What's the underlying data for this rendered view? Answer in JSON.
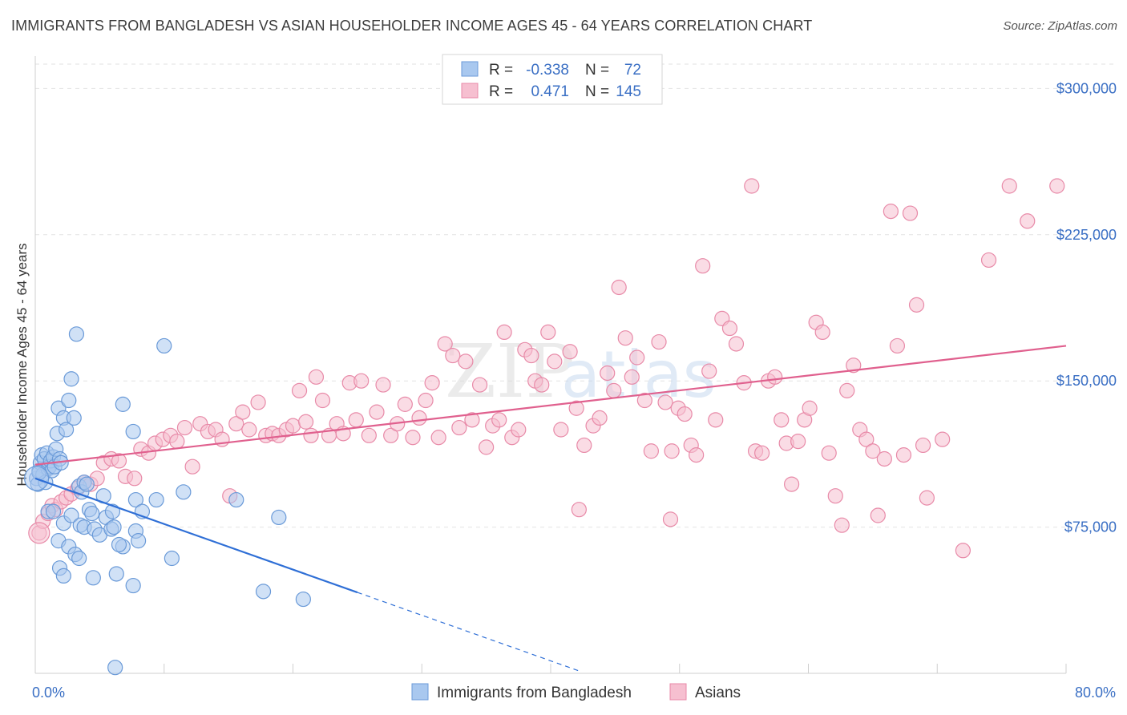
{
  "header": {
    "title": "IMMIGRANTS FROM BANGLADESH VS ASIAN HOUSEHOLDER INCOME AGES 45 - 64 YEARS CORRELATION CHART",
    "source": "Source: ZipAtlas.com"
  },
  "colors": {
    "blue_fill": "#a9c8ef",
    "blue_stroke": "#6a9ad8",
    "blue_line": "#2f6fd6",
    "pink_fill": "#f6bfd0",
    "pink_stroke": "#e88aa8",
    "pink_line": "#e0608e",
    "label_blue": "#3a6fc4",
    "grid": "#e2e2e2"
  },
  "stats_box": {
    "rows": [
      {
        "r_label": "R =",
        "r_value": "-0.338",
        "n_label": "N =",
        "n_value": "72",
        "series": "blue"
      },
      {
        "r_label": "R =",
        "r_value": "0.471",
        "n_label": "N =",
        "n_value": "145",
        "series": "pink"
      }
    ]
  },
  "watermark": {
    "zip": "ZIP",
    "atlas": "atlas"
  },
  "chart_data": {
    "type": "scatter",
    "title": "IMMIGRANTS FROM BANGLADESH VS ASIAN HOUSEHOLDER INCOME AGES 45 - 64 YEARS CORRELATION CHART",
    "ylabel": "Householder Income Ages 45 - 64 years",
    "xlim": [
      0,
      80
    ],
    "ylim": [
      0,
      312500
    ],
    "x_tick_labels": {
      "left": "0.0%",
      "right": "80.0%"
    },
    "y_ticks": [
      75000,
      150000,
      225000,
      300000
    ],
    "y_tick_labels": [
      "$75,000",
      "$150,000",
      "$225,000",
      "$300,000"
    ],
    "grid": true,
    "legend_position": "bottom",
    "series": [
      {
        "name": "Immigrants from Bangladesh",
        "color": "blue",
        "r": -0.338,
        "n": 72,
        "trend": {
          "x0": 0,
          "y0": 100000,
          "x1": 25,
          "y1": 41500,
          "dashed_to_x": 42.3
        },
        "points": [
          [
            0.1,
            100000
          ],
          [
            0.2,
            97000
          ],
          [
            0.3,
            104000
          ],
          [
            0.4,
            108000
          ],
          [
            0.5,
            112000
          ],
          [
            0.6,
            102000
          ],
          [
            0.7,
            110000
          ],
          [
            0.8,
            98000
          ],
          [
            0.9,
            113000
          ],
          [
            1.0,
            105000
          ],
          [
            1.1,
            106000
          ],
          [
            1.2,
            109000
          ],
          [
            1.3,
            104000
          ],
          [
            1.4,
            111000
          ],
          [
            1.5,
            106000
          ],
          [
            1.6,
            115000
          ],
          [
            1.7,
            123000
          ],
          [
            1.8,
            136000
          ],
          [
            1.9,
            110000
          ],
          [
            2.0,
            108000
          ],
          [
            2.2,
            131000
          ],
          [
            2.4,
            125000
          ],
          [
            2.6,
            140000
          ],
          [
            2.8,
            151000
          ],
          [
            3.0,
            131000
          ],
          [
            3.2,
            174000
          ],
          [
            3.4,
            96000
          ],
          [
            3.6,
            93000
          ],
          [
            3.8,
            98000
          ],
          [
            4.0,
            97000
          ],
          [
            4.2,
            84000
          ],
          [
            1.0,
            83000
          ],
          [
            1.4,
            83000
          ],
          [
            2.2,
            77000
          ],
          [
            2.8,
            81000
          ],
          [
            3.5,
            76000
          ],
          [
            3.8,
            75000
          ],
          [
            4.4,
            82000
          ],
          [
            4.6,
            74000
          ],
          [
            5.0,
            71000
          ],
          [
            5.5,
            80000
          ],
          [
            5.9,
            74000
          ],
          [
            6.1,
            75000
          ],
          [
            1.8,
            68000
          ],
          [
            2.6,
            65000
          ],
          [
            3.1,
            61000
          ],
          [
            3.4,
            59000
          ],
          [
            1.9,
            54000
          ],
          [
            2.2,
            50000
          ],
          [
            4.5,
            49000
          ],
          [
            6.3,
            51000
          ],
          [
            7.6,
            45000
          ],
          [
            5.3,
            91000
          ],
          [
            6.0,
            83000
          ],
          [
            7.8,
            89000
          ],
          [
            8.3,
            83000
          ],
          [
            9.4,
            89000
          ],
          [
            11.5,
            93000
          ],
          [
            15.6,
            89000
          ],
          [
            18.9,
            80000
          ],
          [
            17.7,
            42000
          ],
          [
            20.8,
            38000
          ],
          [
            7.6,
            124000
          ],
          [
            6.8,
            138000
          ],
          [
            10.0,
            168000
          ],
          [
            7.8,
            73000
          ],
          [
            8.0,
            68000
          ],
          [
            6.8,
            65000
          ],
          [
            6.5,
            66000
          ],
          [
            10.6,
            59000
          ],
          [
            6.2,
            3000
          ],
          [
            0.3,
            103000
          ]
        ]
      },
      {
        "name": "Asians",
        "color": "pink",
        "r": 0.471,
        "n": 145,
        "trend": {
          "x0": 0,
          "y0": 107000,
          "x1": 80,
          "y1": 168000
        },
        "points": [
          [
            0.3,
            72000
          ],
          [
            0.6,
            78000
          ],
          [
            1.0,
            82000
          ],
          [
            1.3,
            86000
          ],
          [
            1.6,
            84000
          ],
          [
            2.0,
            88000
          ],
          [
            2.4,
            90000
          ],
          [
            2.8,
            92000
          ],
          [
            3.3,
            95000
          ],
          [
            3.8,
            98000
          ],
          [
            4.3,
            97000
          ],
          [
            4.8,
            100000
          ],
          [
            5.3,
            108000
          ],
          [
            5.9,
            110000
          ],
          [
            6.5,
            109000
          ],
          [
            7.0,
            101000
          ],
          [
            7.7,
            100000
          ],
          [
            8.2,
            115000
          ],
          [
            8.8,
            113000
          ],
          [
            9.3,
            118000
          ],
          [
            9.9,
            120000
          ],
          [
            10.5,
            122000
          ],
          [
            11.0,
            119000
          ],
          [
            11.6,
            126000
          ],
          [
            12.2,
            106000
          ],
          [
            12.8,
            128000
          ],
          [
            13.4,
            124000
          ],
          [
            14.0,
            125000
          ],
          [
            14.5,
            120000
          ],
          [
            15.1,
            91000
          ],
          [
            15.6,
            128000
          ],
          [
            16.1,
            134000
          ],
          [
            16.6,
            125000
          ],
          [
            17.3,
            139000
          ],
          [
            17.9,
            122000
          ],
          [
            18.4,
            123000
          ],
          [
            18.9,
            122000
          ],
          [
            19.5,
            125000
          ],
          [
            20.0,
            127000
          ],
          [
            20.5,
            145000
          ],
          [
            21.0,
            129000
          ],
          [
            21.4,
            122000
          ],
          [
            21.8,
            152000
          ],
          [
            22.3,
            140000
          ],
          [
            22.8,
            122000
          ],
          [
            23.4,
            128000
          ],
          [
            23.9,
            123000
          ],
          [
            24.4,
            149000
          ],
          [
            24.9,
            130000
          ],
          [
            25.3,
            150000
          ],
          [
            25.9,
            122000
          ],
          [
            26.5,
            134000
          ],
          [
            27.0,
            148000
          ],
          [
            27.6,
            122000
          ],
          [
            28.1,
            128000
          ],
          [
            28.7,
            138000
          ],
          [
            29.3,
            121000
          ],
          [
            29.8,
            131000
          ],
          [
            30.3,
            140000
          ],
          [
            30.8,
            149000
          ],
          [
            31.3,
            121000
          ],
          [
            31.8,
            169000
          ],
          [
            32.4,
            163000
          ],
          [
            32.9,
            126000
          ],
          [
            33.4,
            160000
          ],
          [
            33.9,
            130000
          ],
          [
            34.5,
            148000
          ],
          [
            35.0,
            116000
          ],
          [
            35.5,
            127000
          ],
          [
            36.0,
            130000
          ],
          [
            36.4,
            175000
          ],
          [
            37.0,
            121000
          ],
          [
            37.5,
            125000
          ],
          [
            38.0,
            166000
          ],
          [
            38.5,
            163000
          ],
          [
            38.8,
            150000
          ],
          [
            39.3,
            148000
          ],
          [
            39.8,
            175000
          ],
          [
            40.3,
            160000
          ],
          [
            40.8,
            125000
          ],
          [
            41.5,
            165000
          ],
          [
            42.0,
            136000
          ],
          [
            42.6,
            117000
          ],
          [
            43.3,
            127000
          ],
          [
            43.8,
            131000
          ],
          [
            44.4,
            154000
          ],
          [
            44.9,
            145000
          ],
          [
            45.3,
            198000
          ],
          [
            45.8,
            172000
          ],
          [
            46.3,
            152000
          ],
          [
            46.7,
            162000
          ],
          [
            47.3,
            140000
          ],
          [
            47.8,
            114000
          ],
          [
            48.4,
            170000
          ],
          [
            48.9,
            139000
          ],
          [
            49.4,
            114000
          ],
          [
            49.9,
            136000
          ],
          [
            50.4,
            133000
          ],
          [
            50.9,
            117000
          ],
          [
            51.3,
            112000
          ],
          [
            51.8,
            209000
          ],
          [
            52.3,
            155000
          ],
          [
            52.8,
            130000
          ],
          [
            53.3,
            182000
          ],
          [
            53.9,
            177000
          ],
          [
            54.4,
            169000
          ],
          [
            55.0,
            149000
          ],
          [
            55.6,
            250000
          ],
          [
            55.9,
            114000
          ],
          [
            56.4,
            113000
          ],
          [
            56.9,
            150000
          ],
          [
            57.4,
            152000
          ],
          [
            57.9,
            130000
          ],
          [
            58.3,
            118000
          ],
          [
            58.7,
            97000
          ],
          [
            59.2,
            119000
          ],
          [
            59.7,
            130000
          ],
          [
            60.1,
            136000
          ],
          [
            60.6,
            180000
          ],
          [
            61.1,
            175000
          ],
          [
            61.6,
            113000
          ],
          [
            62.1,
            91000
          ],
          [
            62.6,
            76000
          ],
          [
            63.0,
            145000
          ],
          [
            63.5,
            158000
          ],
          [
            64.0,
            125000
          ],
          [
            64.5,
            120000
          ],
          [
            65.0,
            114000
          ],
          [
            65.4,
            81000
          ],
          [
            65.9,
            110000
          ],
          [
            66.4,
            237000
          ],
          [
            66.9,
            168000
          ],
          [
            67.4,
            112000
          ],
          [
            67.9,
            236000
          ],
          [
            68.4,
            189000
          ],
          [
            68.9,
            117000
          ],
          [
            69.2,
            90000
          ],
          [
            70.4,
            120000
          ],
          [
            72.0,
            63000
          ],
          [
            74.0,
            212000
          ],
          [
            75.6,
            250000
          ],
          [
            77.0,
            232000
          ],
          [
            79.3,
            250000
          ],
          [
            49.3,
            79000
          ],
          [
            42.2,
            84000
          ]
        ]
      }
    ]
  },
  "legend": {
    "items": [
      {
        "label": "Immigrants from Bangladesh",
        "series": "blue"
      },
      {
        "label": "Asians",
        "series": "pink"
      }
    ]
  }
}
